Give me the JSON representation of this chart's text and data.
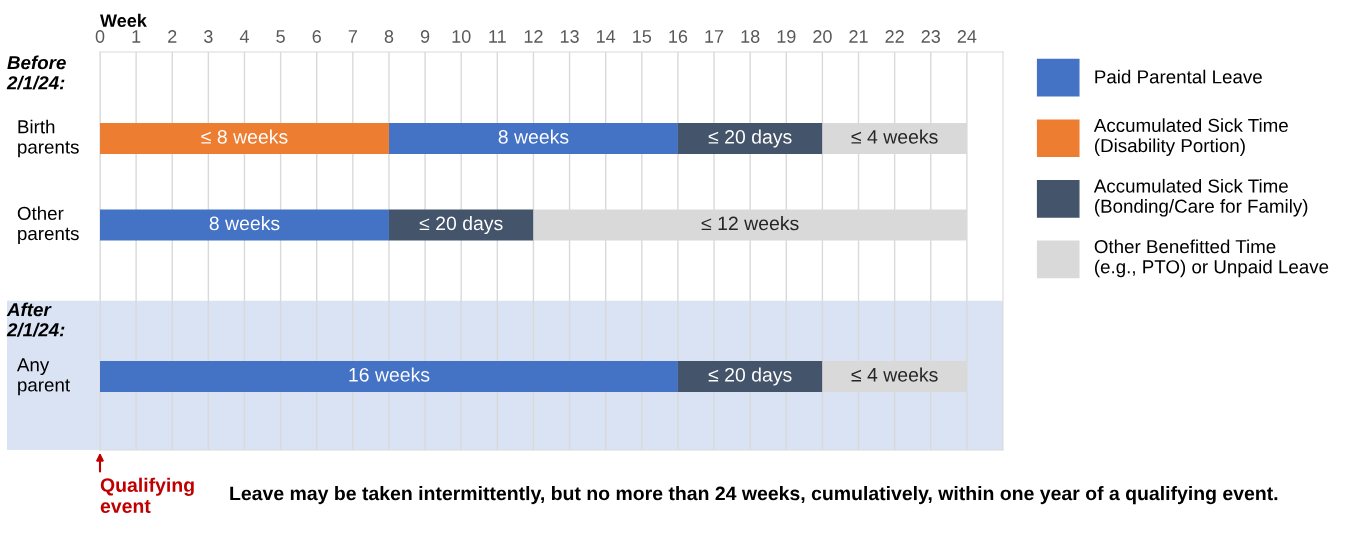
{
  "chart_data": {
    "type": "bar",
    "orientation": "horizontal",
    "xlabel": "Week",
    "categories": [
      "Birth parents",
      "Other parents",
      "Any parent"
    ],
    "series": [
      {
        "name": "Paid Parental Leave",
        "color": "#4472c4",
        "base": [
          8,
          0,
          0
        ],
        "values": [
          8,
          8,
          16
        ],
        "value_labels": [
          "8 weeks",
          "8 weeks",
          "16 weeks"
        ]
      },
      {
        "name": "Accumulated Sick Time\n(Disability Portion)",
        "color": "#ed7d31",
        "base": [
          0,
          null,
          null
        ],
        "values": [
          8,
          null,
          null
        ],
        "value_labels": [
          "≤ 8 weeks",
          null,
          null
        ]
      },
      {
        "name": "Accumulated Sick Time\n(Bonding/Care for Family)",
        "color": "#44546a",
        "base": [
          16,
          8,
          16
        ],
        "values": [
          4,
          4,
          4
        ],
        "value_labels": [
          "≤ 20 days",
          "≤ 20 days",
          "≤ 20 days"
        ]
      },
      {
        "name": "Other Benefitted Time\n(e.g., PTO) or Unpaid Leave",
        "color": "#d9d9d9",
        "base": [
          20,
          12,
          20
        ],
        "values": [
          4,
          12,
          4
        ],
        "value_labels": [
          "≤ 4 weeks",
          "≤ 12 weeks",
          "≤ 4 weeks"
        ]
      }
    ],
    "xlim": [
      0,
      25
    ],
    "xticks": [
      0,
      1,
      2,
      3,
      4,
      5,
      6,
      7,
      8,
      9,
      10,
      11,
      12,
      13,
      14,
      15,
      16,
      17,
      18,
      19,
      20,
      21,
      22,
      23,
      24
    ],
    "grid": "x",
    "legend": "right",
    "annotations": [
      "Before 2/1/24:",
      "After 2/1/24:",
      "Qualifying event",
      "Leave may be taken intermittently, but no more than 24 weeks, cumulatively, within one year of a qualifying event."
    ]
  }
}
